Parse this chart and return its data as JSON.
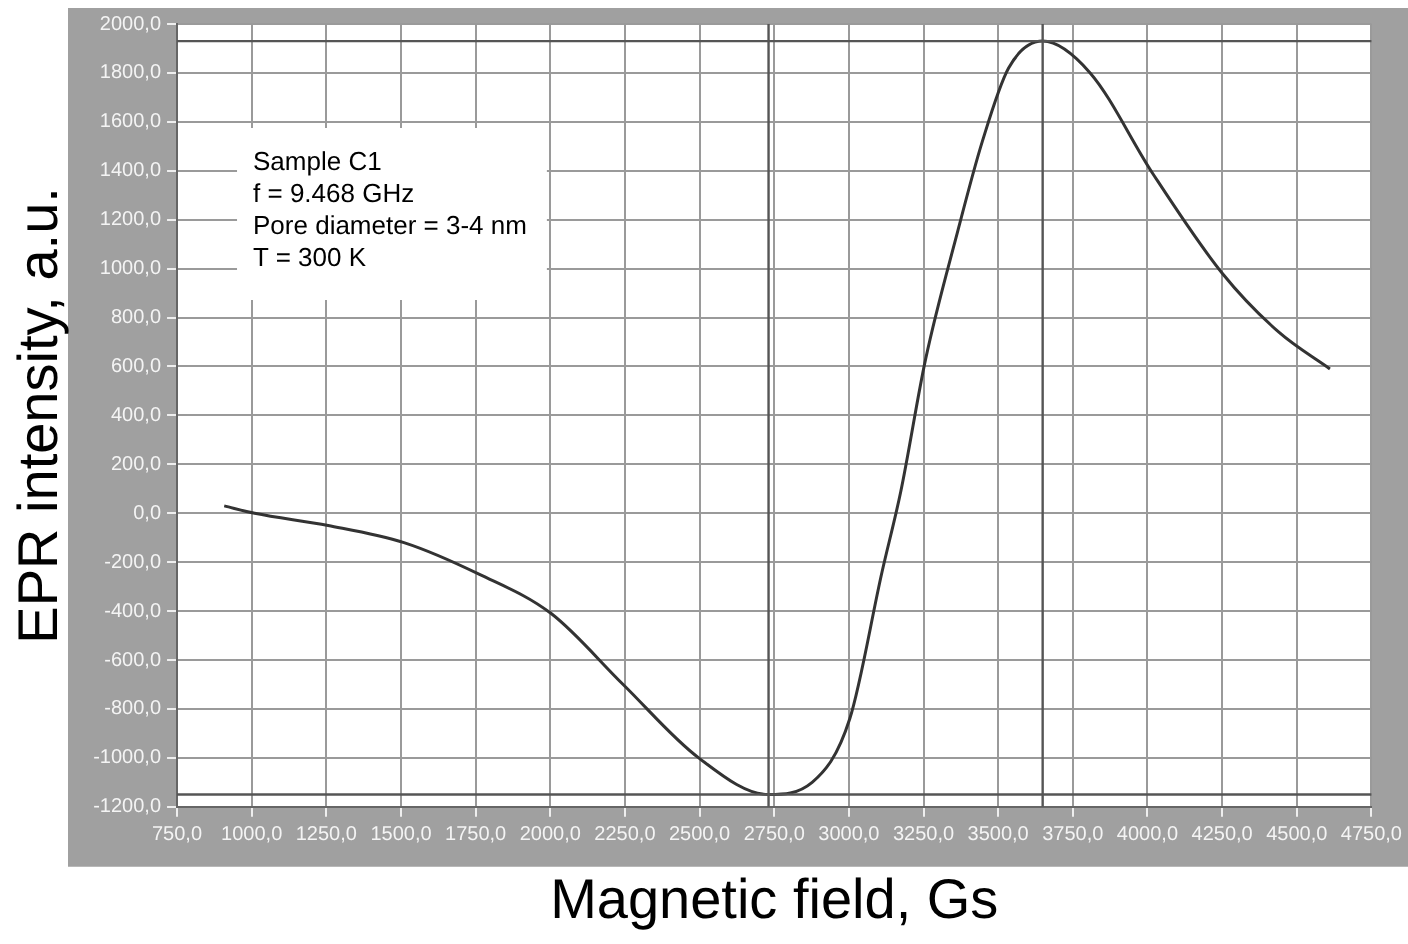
{
  "chart_data": {
    "type": "line",
    "xlabel": "Magnetic field, Gs",
    "ylabel": "EPR intensity, a.u.",
    "annotations": [
      "Sample C1",
      "f = 9.468 GHz",
      "Pore diameter = 3-4 nm",
      "T = 300 K"
    ],
    "x": [
      908,
      1010,
      1256,
      1510,
      1763,
      2003,
      2244,
      2497,
      2731,
      2877,
      3003,
      3111,
      3174,
      3257,
      3364,
      3447,
      3535,
      3649,
      3808,
      4017,
      4251,
      4440,
      4611
    ],
    "series": [
      {
        "color": "#333333",
        "values": [
          30,
          0,
          -50,
          -120,
          -250,
          -410,
          -700,
          -1000,
          -1150,
          -1100,
          -840,
          -240,
          90,
          630,
          1150,
          1520,
          1820,
          1930,
          1800,
          1390,
          980,
          740,
          590
        ]
      }
    ],
    "xlim": [
      750,
      4750
    ],
    "ylim": [
      -1200,
      2000
    ],
    "xticks": [
      {
        "value": 750,
        "label": "750,0"
      },
      {
        "value": 1000,
        "label": "1000,0"
      },
      {
        "value": 1250,
        "label": "1250,0"
      },
      {
        "value": 1500,
        "label": "1500,0"
      },
      {
        "value": 1750,
        "label": "1750,0"
      },
      {
        "value": 2000,
        "label": "2000,0"
      },
      {
        "value": 2250,
        "label": "2250,0"
      },
      {
        "value": 2500,
        "label": "2500,0"
      },
      {
        "value": 2750,
        "label": "2750,0"
      },
      {
        "value": 3000,
        "label": "3000,0"
      },
      {
        "value": 3250,
        "label": "3250,0"
      },
      {
        "value": 3500,
        "label": "3500,0"
      },
      {
        "value": 3750,
        "label": "3750,0"
      },
      {
        "value": 4000,
        "label": "4000,0"
      },
      {
        "value": 4250,
        "label": "4250,0"
      },
      {
        "value": 4500,
        "label": "4500,0"
      },
      {
        "value": 4750,
        "label": "4750,0"
      }
    ],
    "yticks": [
      {
        "value": -1200,
        "label": "-1200,0"
      },
      {
        "value": -1000,
        "label": "-1000,0"
      },
      {
        "value": -800,
        "label": "-800,0"
      },
      {
        "value": -600,
        "label": "-600,0"
      },
      {
        "value": -400,
        "label": "-400,0"
      },
      {
        "value": -200,
        "label": "-200,0"
      },
      {
        "value": 0,
        "label": "0,0"
      },
      {
        "value": 200,
        "label": "200,0"
      },
      {
        "value": 400,
        "label": "400,0"
      },
      {
        "value": 600,
        "label": "600,0"
      },
      {
        "value": 800,
        "label": "800,0"
      },
      {
        "value": 1000,
        "label": "1000,0"
      },
      {
        "value": 1200,
        "label": "1200,0"
      },
      {
        "value": 1400,
        "label": "1400,0"
      },
      {
        "value": 1600,
        "label": "1600,0"
      },
      {
        "value": 1800,
        "label": "1800,0"
      },
      {
        "value": 2000,
        "label": "2000,0"
      }
    ],
    "ref_lines": [
      {
        "axis": "x",
        "value": 2731,
        "color": "#555555"
      },
      {
        "axis": "x",
        "value": 3649,
        "color": "#555555"
      },
      {
        "axis": "y",
        "value": -1150,
        "color": "#555555"
      },
      {
        "axis": "y",
        "value": 1930,
        "color": "#555555"
      }
    ],
    "grid": true,
    "legend": false,
    "marker": "none",
    "line_style": "solid"
  }
}
